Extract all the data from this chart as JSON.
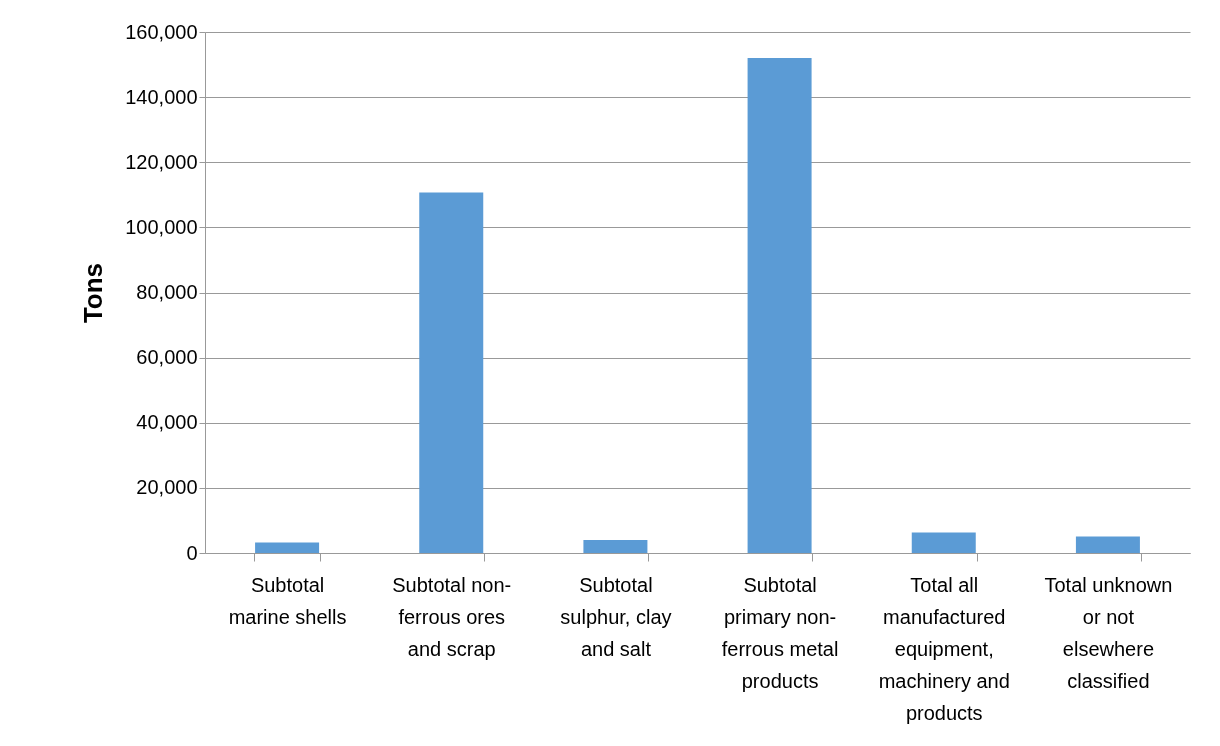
{
  "chart_data": {
    "type": "bar",
    "ylabel": "Tons",
    "categories": [
      "Subtotal\nmarine shells",
      "Subtotal non-\nferrous ores\nand scrap",
      "Subtotal\nsulphur, clay\nand salt",
      "Subtotal\nprimary non-\nferrous metal\nproducts",
      "Total all\nmanufactured\nequipment,\nmachinery and\nproducts",
      "Total unknown\nor not\nelsewhere\nclassified"
    ],
    "values": [
      3200,
      110700,
      4000,
      152000,
      6300,
      5100
    ],
    "color": "#5b9bd5",
    "ylim": [
      0,
      160000
    ],
    "yticks": [
      {
        "value": 0,
        "label": "0"
      },
      {
        "value": 20000,
        "label": "20,000"
      },
      {
        "value": 40000,
        "label": "40,000"
      },
      {
        "value": 60000,
        "label": "60,000"
      },
      {
        "value": 80000,
        "label": "80,000"
      },
      {
        "value": 100000,
        "label": "100,000"
      },
      {
        "value": 120000,
        "label": "120,000"
      },
      {
        "value": 140000,
        "label": "140,000"
      },
      {
        "value": 160000,
        "label": "160,000"
      }
    ],
    "grid": "y"
  }
}
